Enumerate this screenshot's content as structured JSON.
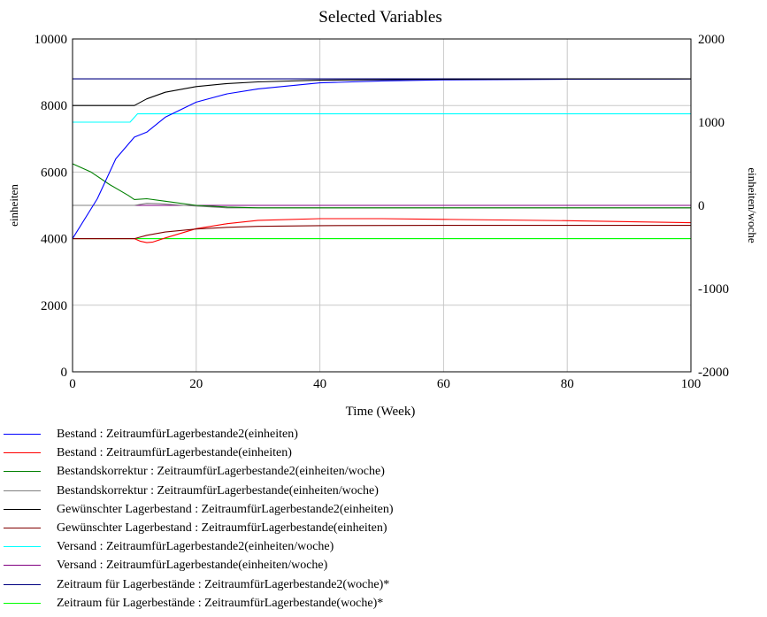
{
  "chart_data": {
    "type": "line",
    "title": "Selected Variables",
    "xlabel": "Time (Week)",
    "ylabel_left": "einheiten",
    "ylabel_right": "einheiten/woche",
    "xlim": [
      0,
      100
    ],
    "ylim_left": [
      0,
      10000
    ],
    "ylim_right": [
      -2000,
      2000
    ],
    "x_ticks": [
      0,
      20,
      40,
      60,
      80,
      100
    ],
    "y_ticks_left": [
      0,
      2000,
      4000,
      6000,
      8000,
      10000
    ],
    "y_ticks_right": [
      -2000,
      -1000,
      0,
      1000,
      2000
    ],
    "grid": true,
    "legend_position": "bottom",
    "series": [
      {
        "name": "Bestand : ZeitraumfürLagerbestande2(einheiten)",
        "color": "#0000ff",
        "axis": "left",
        "x": [
          0,
          4,
          7,
          10,
          12,
          15,
          20,
          25,
          30,
          40,
          50,
          60,
          80,
          100
        ],
        "y": [
          4000,
          5200,
          6400,
          7050,
          7200,
          7650,
          8100,
          8350,
          8500,
          8680,
          8740,
          8770,
          8790,
          8800
        ]
      },
      {
        "name": "Bestand : ZeitraumfürLagerbestande(einheiten)",
        "color": "#ff0000",
        "axis": "left",
        "x": [
          0,
          10,
          11,
          12,
          13,
          15,
          20,
          25,
          30,
          40,
          50,
          60,
          80,
          100
        ],
        "y": [
          4000,
          4000,
          3920,
          3880,
          3900,
          4020,
          4300,
          4450,
          4550,
          4600,
          4600,
          4580,
          4540,
          4480
        ]
      },
      {
        "name": "Bestandskorrektur : ZeitraumfürLagerbestande2(einheiten/woche)",
        "color": "#008000",
        "axis": "right",
        "x": [
          0,
          3,
          6,
          9,
          10,
          12,
          15,
          20,
          25,
          30,
          40,
          60,
          80,
          100
        ],
        "y": [
          500,
          400,
          250,
          120,
          70,
          80,
          50,
          0,
          -20,
          -30,
          -30,
          -30,
          -30,
          -30
        ]
      },
      {
        "name": "Bestandskorrektur : ZeitraumfürLagerbestande(einheiten/woche)",
        "color": "#808080",
        "axis": "right",
        "x": [
          0,
          10,
          12,
          14,
          18,
          25,
          30,
          40,
          60,
          80,
          100
        ],
        "y": [
          0,
          0,
          25,
          20,
          0,
          -30,
          -30,
          -30,
          -30,
          -30,
          -30
        ]
      },
      {
        "name": "Gewünschter Lagerbestand : ZeitraumfürLagerbestande2(einheiten)",
        "color": "#000000",
        "axis": "left",
        "x": [
          0,
          10,
          12,
          15,
          20,
          25,
          30,
          40,
          60,
          80,
          100
        ],
        "y": [
          8000,
          8000,
          8200,
          8400,
          8570,
          8660,
          8710,
          8760,
          8790,
          8800,
          8800
        ]
      },
      {
        "name": "Gewünschter Lagerbestand : ZeitraumfürLagerbestande(einheiten)",
        "color": "#800000",
        "axis": "left",
        "x": [
          0,
          10,
          12,
          15,
          20,
          25,
          30,
          40,
          60,
          80,
          100
        ],
        "y": [
          4000,
          4000,
          4100,
          4200,
          4290,
          4340,
          4370,
          4390,
          4400,
          4400,
          4400
        ]
      },
      {
        "name": "Versand : ZeitraumfürLagerbestande2(einheiten/woche)",
        "color": "#00ffff",
        "axis": "right",
        "x": [
          0,
          9.3,
          10.5,
          100
        ],
        "y": [
          1000,
          1000,
          1100,
          1100
        ]
      },
      {
        "name": "Versand : ZeitraumfürLagerbestande(einheiten/woche)",
        "color": "#800080",
        "axis": "right",
        "x": [
          0,
          100
        ],
        "y": [
          0,
          0
        ]
      },
      {
        "name": "Zeitraum für Lagerbestände : ZeitraumfürLagerbestande2(woche)*",
        "color": "#000080",
        "axis": "left",
        "x": [
          0,
          100
        ],
        "y": [
          8800,
          8800
        ]
      },
      {
        "name": "Zeitraum für Lagerbestände : ZeitraumfürLagerbestande(woche)*",
        "color": "#00ff00",
        "axis": "left",
        "x": [
          0,
          100
        ],
        "y": [
          4000,
          4000
        ]
      }
    ]
  }
}
